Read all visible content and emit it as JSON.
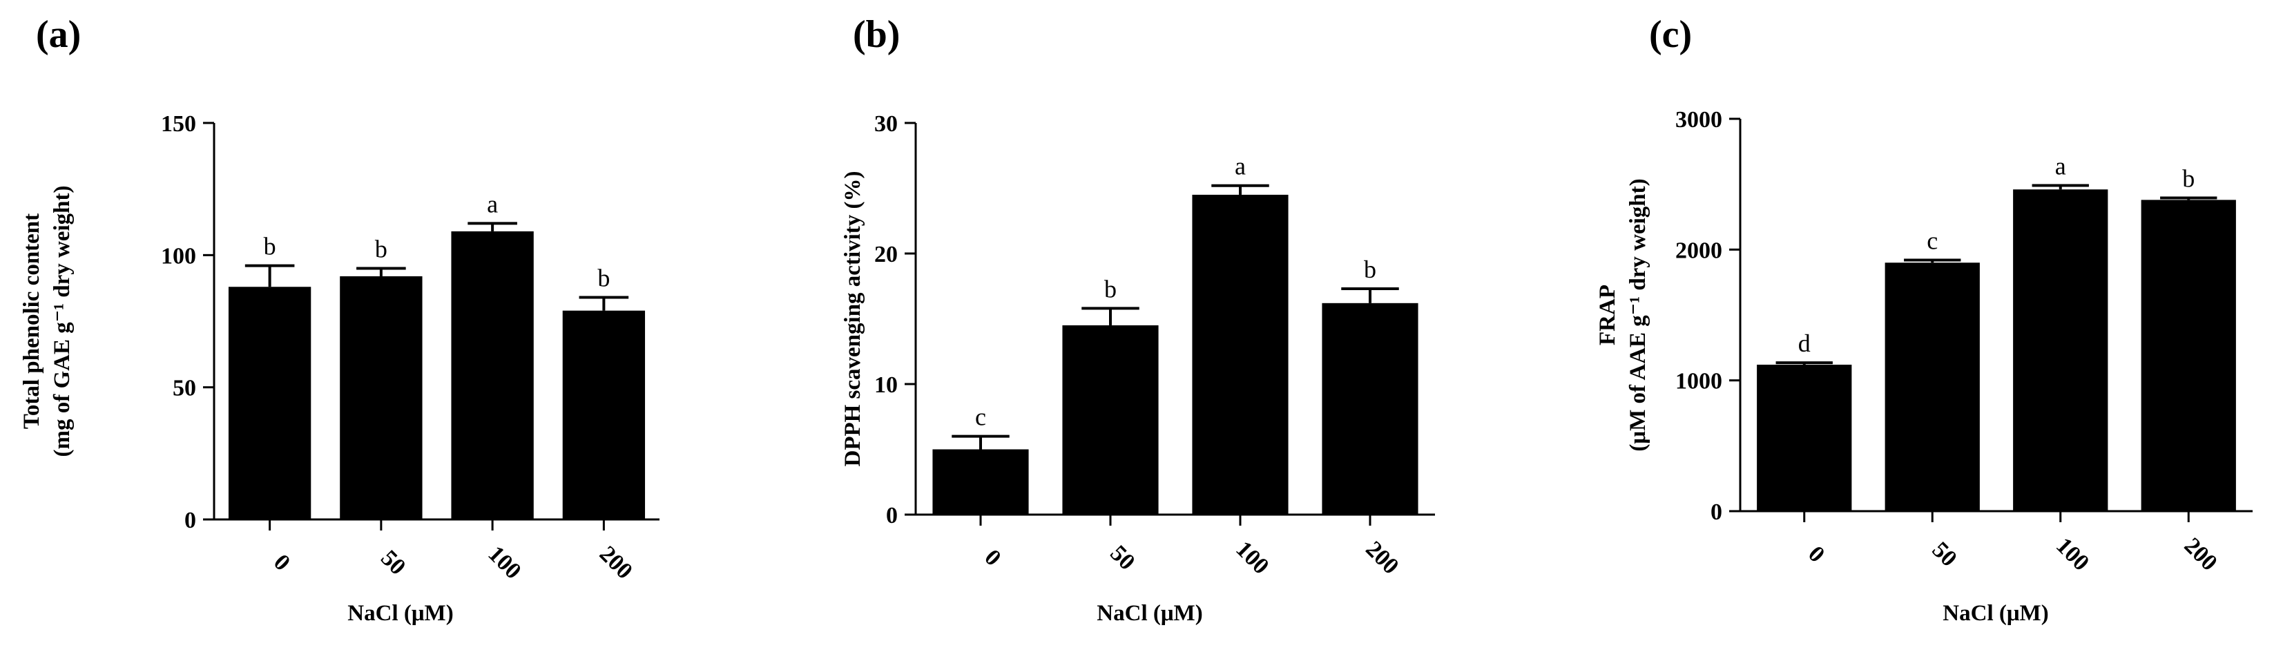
{
  "chart_data": [
    {
      "type": "bar",
      "panel_label": "(a)",
      "categories": [
        "0",
        "50",
        "100",
        "200"
      ],
      "values": [
        88,
        92,
        109,
        79
      ],
      "errors": [
        8,
        3,
        3,
        5
      ],
      "letters": [
        "b",
        "b",
        "a",
        "b"
      ],
      "ylabel_lines": [
        "Total phenolic content",
        "(mg of GAE g⁻¹ dry weight)"
      ],
      "xlabel": "NaCl (μM)",
      "ylim": [
        0,
        150
      ],
      "yticks": [
        0,
        50,
        100,
        150
      ],
      "bar_color": "#000000"
    },
    {
      "type": "bar",
      "panel_label": "(b)",
      "categories": [
        "0",
        "50",
        "100",
        "200"
      ],
      "values": [
        5,
        14.5,
        24.5,
        16.2
      ],
      "errors": [
        1,
        1.3,
        0.7,
        1.1
      ],
      "letters": [
        "c",
        "b",
        "a",
        "b"
      ],
      "ylabel_lines": [
        "DPPH scavenging activity (%)"
      ],
      "xlabel": "NaCl (μM)",
      "ylim": [
        0,
        30
      ],
      "yticks": [
        0,
        10,
        20,
        30
      ],
      "bar_color": "#000000"
    },
    {
      "type": "bar",
      "panel_label": "(c)",
      "categories": [
        "0",
        "50",
        "100",
        "200"
      ],
      "values": [
        1120,
        1900,
        2460,
        2380
      ],
      "errors": [
        15,
        20,
        30,
        15
      ],
      "letters": [
        "d",
        "c",
        "a",
        "b"
      ],
      "ylabel_lines": [
        "FRAP",
        "(μM of AAE g⁻¹ dry weight)"
      ],
      "xlabel": "NaCl (μM)",
      "ylim": [
        0,
        3000
      ],
      "yticks": [
        0,
        1000,
        2000,
        3000
      ],
      "bar_color": "#000000"
    }
  ]
}
